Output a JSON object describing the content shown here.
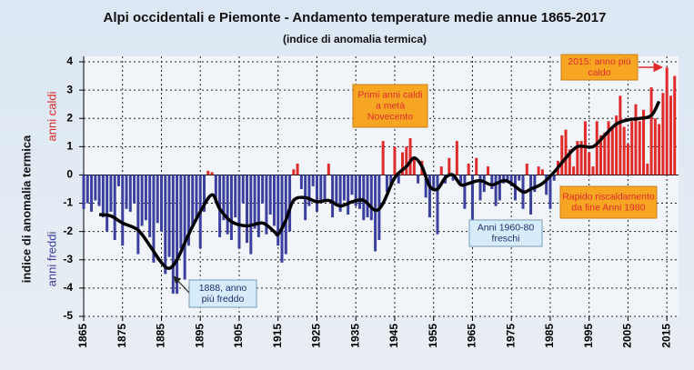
{
  "chart_data": {
    "type": "bar",
    "title": "Alpi occidentali e Piemonte - Andamento temperature medie annue 1865-2017",
    "subtitle": "(indice di anomalia termica)",
    "y_label": "indice di anomalia termica",
    "y_label_warm": "anni caldi",
    "y_label_cold": "anni freddi",
    "x": [
      1865,
      1866,
      1867,
      1868,
      1869,
      1870,
      1871,
      1872,
      1873,
      1874,
      1875,
      1876,
      1877,
      1878,
      1879,
      1880,
      1881,
      1882,
      1883,
      1884,
      1885,
      1886,
      1887,
      1888,
      1889,
      1890,
      1891,
      1892,
      1893,
      1894,
      1895,
      1896,
      1897,
      1898,
      1899,
      1900,
      1901,
      1902,
      1903,
      1904,
      1905,
      1906,
      1907,
      1908,
      1909,
      1910,
      1911,
      1912,
      1913,
      1914,
      1915,
      1916,
      1917,
      1918,
      1919,
      1920,
      1921,
      1922,
      1923,
      1924,
      1925,
      1926,
      1927,
      1928,
      1929,
      1930,
      1931,
      1932,
      1933,
      1934,
      1935,
      1936,
      1937,
      1938,
      1939,
      1940,
      1941,
      1942,
      1943,
      1944,
      1945,
      1946,
      1947,
      1948,
      1949,
      1950,
      1951,
      1952,
      1953,
      1954,
      1955,
      1956,
      1957,
      1958,
      1959,
      1960,
      1961,
      1962,
      1963,
      1964,
      1965,
      1966,
      1967,
      1968,
      1969,
      1970,
      1971,
      1972,
      1973,
      1974,
      1975,
      1976,
      1977,
      1978,
      1979,
      1980,
      1981,
      1982,
      1983,
      1984,
      1985,
      1986,
      1987,
      1988,
      1989,
      1990,
      1991,
      1992,
      1993,
      1994,
      1995,
      1996,
      1997,
      1998,
      1999,
      2000,
      2001,
      2002,
      2003,
      2004,
      2005,
      2006,
      2007,
      2008,
      2009,
      2010,
      2011,
      2012,
      2013,
      2014,
      2015,
      2016,
      2017
    ],
    "values": [
      -1.2,
      -1.0,
      -1.3,
      -0.9,
      -1.1,
      -1.5,
      -2.0,
      -1.3,
      -2.3,
      -0.4,
      -2.5,
      -1.2,
      -1.3,
      -1.0,
      -2.8,
      -1.8,
      -1.6,
      -2.2,
      -3.1,
      -1.7,
      -2.0,
      -3.5,
      -2.9,
      -4.2,
      -4.2,
      -2.6,
      -3.7,
      -2.5,
      -1.8,
      -1.5,
      -2.6,
      -1.3,
      0.15,
      0.1,
      -1.0,
      -2.2,
      -1.6,
      -2.1,
      -2.3,
      -1.5,
      -2.6,
      -1.0,
      -2.4,
      -2.8,
      -1.9,
      -2.2,
      -1.0,
      -2.1,
      -1.4,
      -1.8,
      -2.5,
      -3.1,
      -2.8,
      -2.0,
      0.2,
      0.4,
      -0.5,
      -1.6,
      -1.1,
      -0.4,
      -1.3,
      -1.0,
      -0.9,
      0.4,
      -1.5,
      -1.1,
      -1.3,
      -0.9,
      -1.4,
      -0.7,
      -1.1,
      -1.2,
      -1.6,
      -1.5,
      -1.6,
      -2.7,
      -2.3,
      1.2,
      -0.6,
      -0.4,
      1.0,
      -0.3,
      0.8,
      1.0,
      1.3,
      0.6,
      -0.3,
      0.5,
      -0.8,
      -1.5,
      -0.5,
      -2.1,
      0.3,
      -0.3,
      0.6,
      -0.2,
      1.2,
      -0.4,
      -1.2,
      0.4,
      -1.8,
      0.6,
      -0.9,
      -0.6,
      0.3,
      -0.5,
      -1.1,
      -0.9,
      -0.3,
      -0.2,
      -0.4,
      -0.9,
      -0.2,
      -1.2,
      0.4,
      -1.4,
      -0.6,
      0.3,
      0.2,
      -0.7,
      -1.2,
      -0.2,
      0.5,
      1.4,
      1.6,
      0.9,
      0.3,
      1.2,
      1.2,
      1.9,
      0.8,
      0.3,
      1.9,
      1.4,
      1.5,
      1.9,
      1.7,
      2.1,
      2.8,
      1.7,
      1.1,
      1.9,
      2.5,
      1.9,
      2.3,
      0.4,
      3.1,
      2.0,
      1.8,
      2.9,
      3.8,
      2.8,
      3.5
    ],
    "pos_color": "#e02b2b",
    "neg_color": "#3b3f9e",
    "trend": {
      "color": "#000000",
      "x": [
        1869,
        1872,
        1875,
        1879,
        1882,
        1885,
        1887,
        1889,
        1892,
        1895,
        1898,
        1900,
        1903,
        1907,
        1911,
        1914,
        1915,
        1917,
        1919,
        1922,
        1925,
        1928,
        1931,
        1934,
        1937,
        1940,
        1942,
        1945,
        1948,
        1950,
        1952,
        1954,
        1956,
        1958,
        1960,
        1962,
        1964,
        1967,
        1970,
        1973,
        1975,
        1978,
        1980,
        1983,
        1986,
        1989,
        1992,
        1996,
        1999,
        2002,
        2005,
        2008,
        2011,
        2013
      ],
      "values": [
        -1.4,
        -1.45,
        -1.7,
        -1.95,
        -2.5,
        -3.1,
        -3.3,
        -3.0,
        -2.1,
        -1.3,
        -0.7,
        -1.2,
        -1.65,
        -1.8,
        -1.7,
        -2.0,
        -2.1,
        -1.6,
        -0.9,
        -0.8,
        -0.95,
        -0.9,
        -1.1,
        -0.95,
        -0.9,
        -1.25,
        -1.0,
        -0.1,
        0.3,
        0.6,
        0.3,
        -0.4,
        -0.5,
        -0.1,
        0.0,
        -0.35,
        -0.3,
        -0.2,
        -0.35,
        -0.2,
        -0.3,
        -0.6,
        -0.5,
        -0.3,
        0.1,
        0.6,
        1.0,
        1.0,
        1.4,
        1.8,
        1.95,
        2.0,
        2.1,
        2.6
      ]
    },
    "xlim": [
      1865,
      2018
    ],
    "xticks": [
      1865,
      1875,
      1885,
      1895,
      1905,
      1915,
      1925,
      1935,
      1945,
      1955,
      1965,
      1975,
      1985,
      1995,
      2005,
      2015
    ],
    "ylim": [
      -5,
      4
    ],
    "yticks": [
      -5,
      -4,
      -3,
      -2,
      -1,
      0,
      1,
      2,
      3,
      4
    ],
    "grid": true,
    "annotations": [
      {
        "lines": [
          "2015: anno più",
          "caldo"
        ],
        "style": "warm"
      },
      {
        "lines": [
          "Primi anni caldi",
          "a metà",
          "Novecento"
        ],
        "style": "warm"
      },
      {
        "lines": [
          "Rapido riscaldamento",
          "da fine Anni 1980"
        ],
        "style": "warm"
      },
      {
        "lines": [
          "Anni 1960-80",
          "freschi"
        ],
        "style": "cold"
      },
      {
        "lines": [
          "1888, anno",
          "più freddo"
        ],
        "style": "cold"
      }
    ]
  }
}
